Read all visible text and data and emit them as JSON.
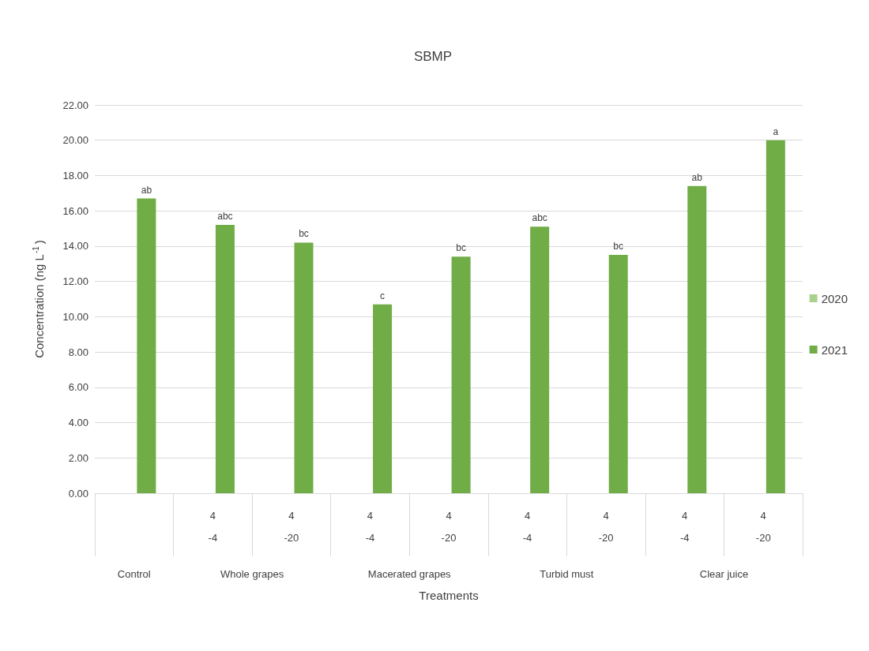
{
  "chart_data": {
    "type": "bar",
    "title": "SBMP",
    "xlabel": "Treatments",
    "ylabel": "Concentration (ng L$^{-1}$)",
    "categories": [
      null,
      "4\n-4",
      "4\n-20",
      "4\n-4",
      "4\n-20",
      "4\n-4",
      "4\n-20",
      "4\n-4",
      "4\n-20"
    ],
    "series": [
      {
        "name": "2020",
        "color": "#a9d18e",
        "values": [
          null,
          null,
          null,
          null,
          null,
          null,
          null,
          null,
          null
        ]
      },
      {
        "name": "2021",
        "color": "#70ad47",
        "values": [
          16.7,
          15.2,
          14.2,
          10.7,
          13.4,
          15.1,
          13.5,
          17.4,
          20.0
        ],
        "value_labels": [
          "ab",
          "abc",
          "bc",
          "c",
          "bc",
          "abc",
          "bc",
          "ab",
          "a"
        ]
      }
    ],
    "annotations": [
      "Control",
      "Whole grapes",
      "Macerated grapes",
      "Turbid must",
      "Clear juice"
    ],
    "ylim": [
      0,
      22
    ],
    "yticks": [
      {
        "value": 0,
        "label": "0.00"
      },
      {
        "value": 2,
        "label": "2.00"
      },
      {
        "value": 4,
        "label": "4.00"
      },
      {
        "value": 6,
        "label": "6.00"
      },
      {
        "value": 8,
        "label": "8.00"
      },
      {
        "value": 10,
        "label": "10.00"
      },
      {
        "value": 12,
        "label": "12.00"
      },
      {
        "value": 14,
        "label": "14.00"
      },
      {
        "value": 16,
        "label": "16.00"
      },
      {
        "value": 18,
        "label": "18.00"
      },
      {
        "value": 20,
        "label": "20.00"
      },
      {
        "value": 22,
        "label": "22.00"
      }
    ],
    "grid": "y",
    "legend": "right"
  }
}
